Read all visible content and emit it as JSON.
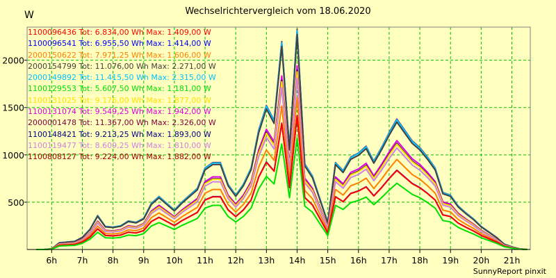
{
  "chart_data": {
    "type": "line",
    "title": "Wechselrichtervergleich vom 18.06.2020",
    "ylabel": "W",
    "footer": "SunnyReport pinxit",
    "xlim": [
      5.2,
      21.6
    ],
    "ylim": [
      0,
      2350
    ],
    "grid": true,
    "legend_position": "top-left",
    "x_ticks": [
      {
        "value": 6,
        "label": "6h"
      },
      {
        "value": 7,
        "label": "7h"
      },
      {
        "value": 8,
        "label": "8h"
      },
      {
        "value": 9,
        "label": "9h"
      },
      {
        "value": 10,
        "label": "10h"
      },
      {
        "value": 11,
        "label": "11h"
      },
      {
        "value": 12,
        "label": "12h"
      },
      {
        "value": 13,
        "label": "13h"
      },
      {
        "value": 14,
        "label": "14h"
      },
      {
        "value": 15,
        "label": "15h"
      },
      {
        "value": 16,
        "label": "16h"
      },
      {
        "value": 17,
        "label": "17h"
      },
      {
        "value": 18,
        "label": "18h"
      },
      {
        "value": 19,
        "label": "19h"
      },
      {
        "value": 20,
        "label": "20h"
      },
      {
        "value": 21,
        "label": "21h"
      }
    ],
    "y_ticks": [
      {
        "value": 500,
        "label": "500"
      },
      {
        "value": 1000,
        "label": "1000"
      },
      {
        "value": 1500,
        "label": "1500"
      },
      {
        "value": 2000,
        "label": "2000"
      }
    ],
    "x": [
      5.5,
      5.75,
      6.0,
      6.25,
      6.5,
      6.75,
      7.0,
      7.25,
      7.5,
      7.75,
      8.0,
      8.25,
      8.5,
      8.75,
      9.0,
      9.25,
      9.5,
      9.75,
      10.0,
      10.25,
      10.5,
      10.75,
      11.0,
      11.25,
      11.5,
      11.75,
      12.0,
      12.25,
      12.5,
      12.75,
      13.0,
      13.25,
      13.5,
      13.75,
      14.0,
      14.25,
      14.5,
      14.75,
      15.0,
      15.25,
      15.5,
      15.75,
      16.0,
      16.25,
      16.5,
      16.75,
      17.0,
      17.25,
      17.5,
      17.75,
      18.0,
      18.25,
      18.5,
      18.75,
      19.0,
      19.25,
      19.5,
      19.75,
      20.0,
      20.25,
      20.5,
      20.75,
      21.0,
      21.25,
      21.5
    ],
    "base_profile": [
      0,
      0,
      5,
      50,
      55,
      60,
      90,
      150,
      250,
      170,
      165,
      175,
      210,
      200,
      230,
      340,
      390,
      340,
      290,
      350,
      400,
      450,
      600,
      640,
      640,
      480,
      400,
      480,
      600,
      880,
      1060,
      950,
      1530,
      750,
      1620,
      630,
      540,
      370,
      200,
      640,
      580,
      680,
      710,
      760,
      650,
      750,
      860,
      960,
      880,
      800,
      750,
      680,
      600,
      420,
      400,
      320,
      270,
      225,
      170,
      130,
      90,
      40,
      20,
      5,
      0
    ],
    "series": [
      {
        "name": "1100096436",
        "label": "1100096436 Tot: 6.834,00 Wh Max: 1.409,00 W",
        "color": "#ff0000",
        "max": 1409
      },
      {
        "name": "1100096541",
        "label": "1100096541 Tot: 6.955,50 Wh Max: 1.414,00 W",
        "color": "#0000ff",
        "max": 1414
      },
      {
        "name": "2000150622",
        "label": "2000150622 Tot: 7.971,25 Wh Max: 1.606,00 W",
        "color": "#ff8000",
        "max": 1606
      },
      {
        "name": "2000154799",
        "label": "2000154799 Tot: 11.076,00 Wh Max: 2.271,00 W",
        "color": "#404040",
        "max": 2271
      },
      {
        "name": "2000149892",
        "label": "2000149892 Tot: 11.415,50 Wh Max: 2.315,00 W",
        "color": "#00c0ff",
        "max": 2315
      },
      {
        "name": "1100129553",
        "label": "1100129553 Tot: 5.607,50 Wh Max: 1.181,00 W",
        "color": "#00e000",
        "max": 1181
      },
      {
        "name": "1100131025",
        "label": "1100131025 Tot: 9.176,00 Wh Max: 1.877,00 W",
        "color": "#ffe000",
        "max": 1877
      },
      {
        "name": "1100131074",
        "label": "1100131074 Tot: 9.549,25 Wh Max: 1.942,00 W",
        "color": "#e000e0",
        "max": 1942
      },
      {
        "name": "2000001478",
        "label": "2000001478 Tot: 11.367,00 Wh Max: 2.326,00 W",
        "color": "#800040",
        "max": 2326
      },
      {
        "name": "1100148421",
        "label": "1100148421 Tot: 9.213,25 Wh Max: 1.893,00 W",
        "color": "#000080",
        "max": 1893
      },
      {
        "name": "1100119477",
        "label": "1100119477 Tot: 8.609,25 Wh Max: 1.810,00 W",
        "color": "#d080e0",
        "max": 1810
      },
      {
        "name": "1100808127",
        "label": "1100808127 Tot: 9.224,00 Wh Max: 1.882,00 W",
        "color": "#a00000",
        "max": 1882
      }
    ]
  }
}
